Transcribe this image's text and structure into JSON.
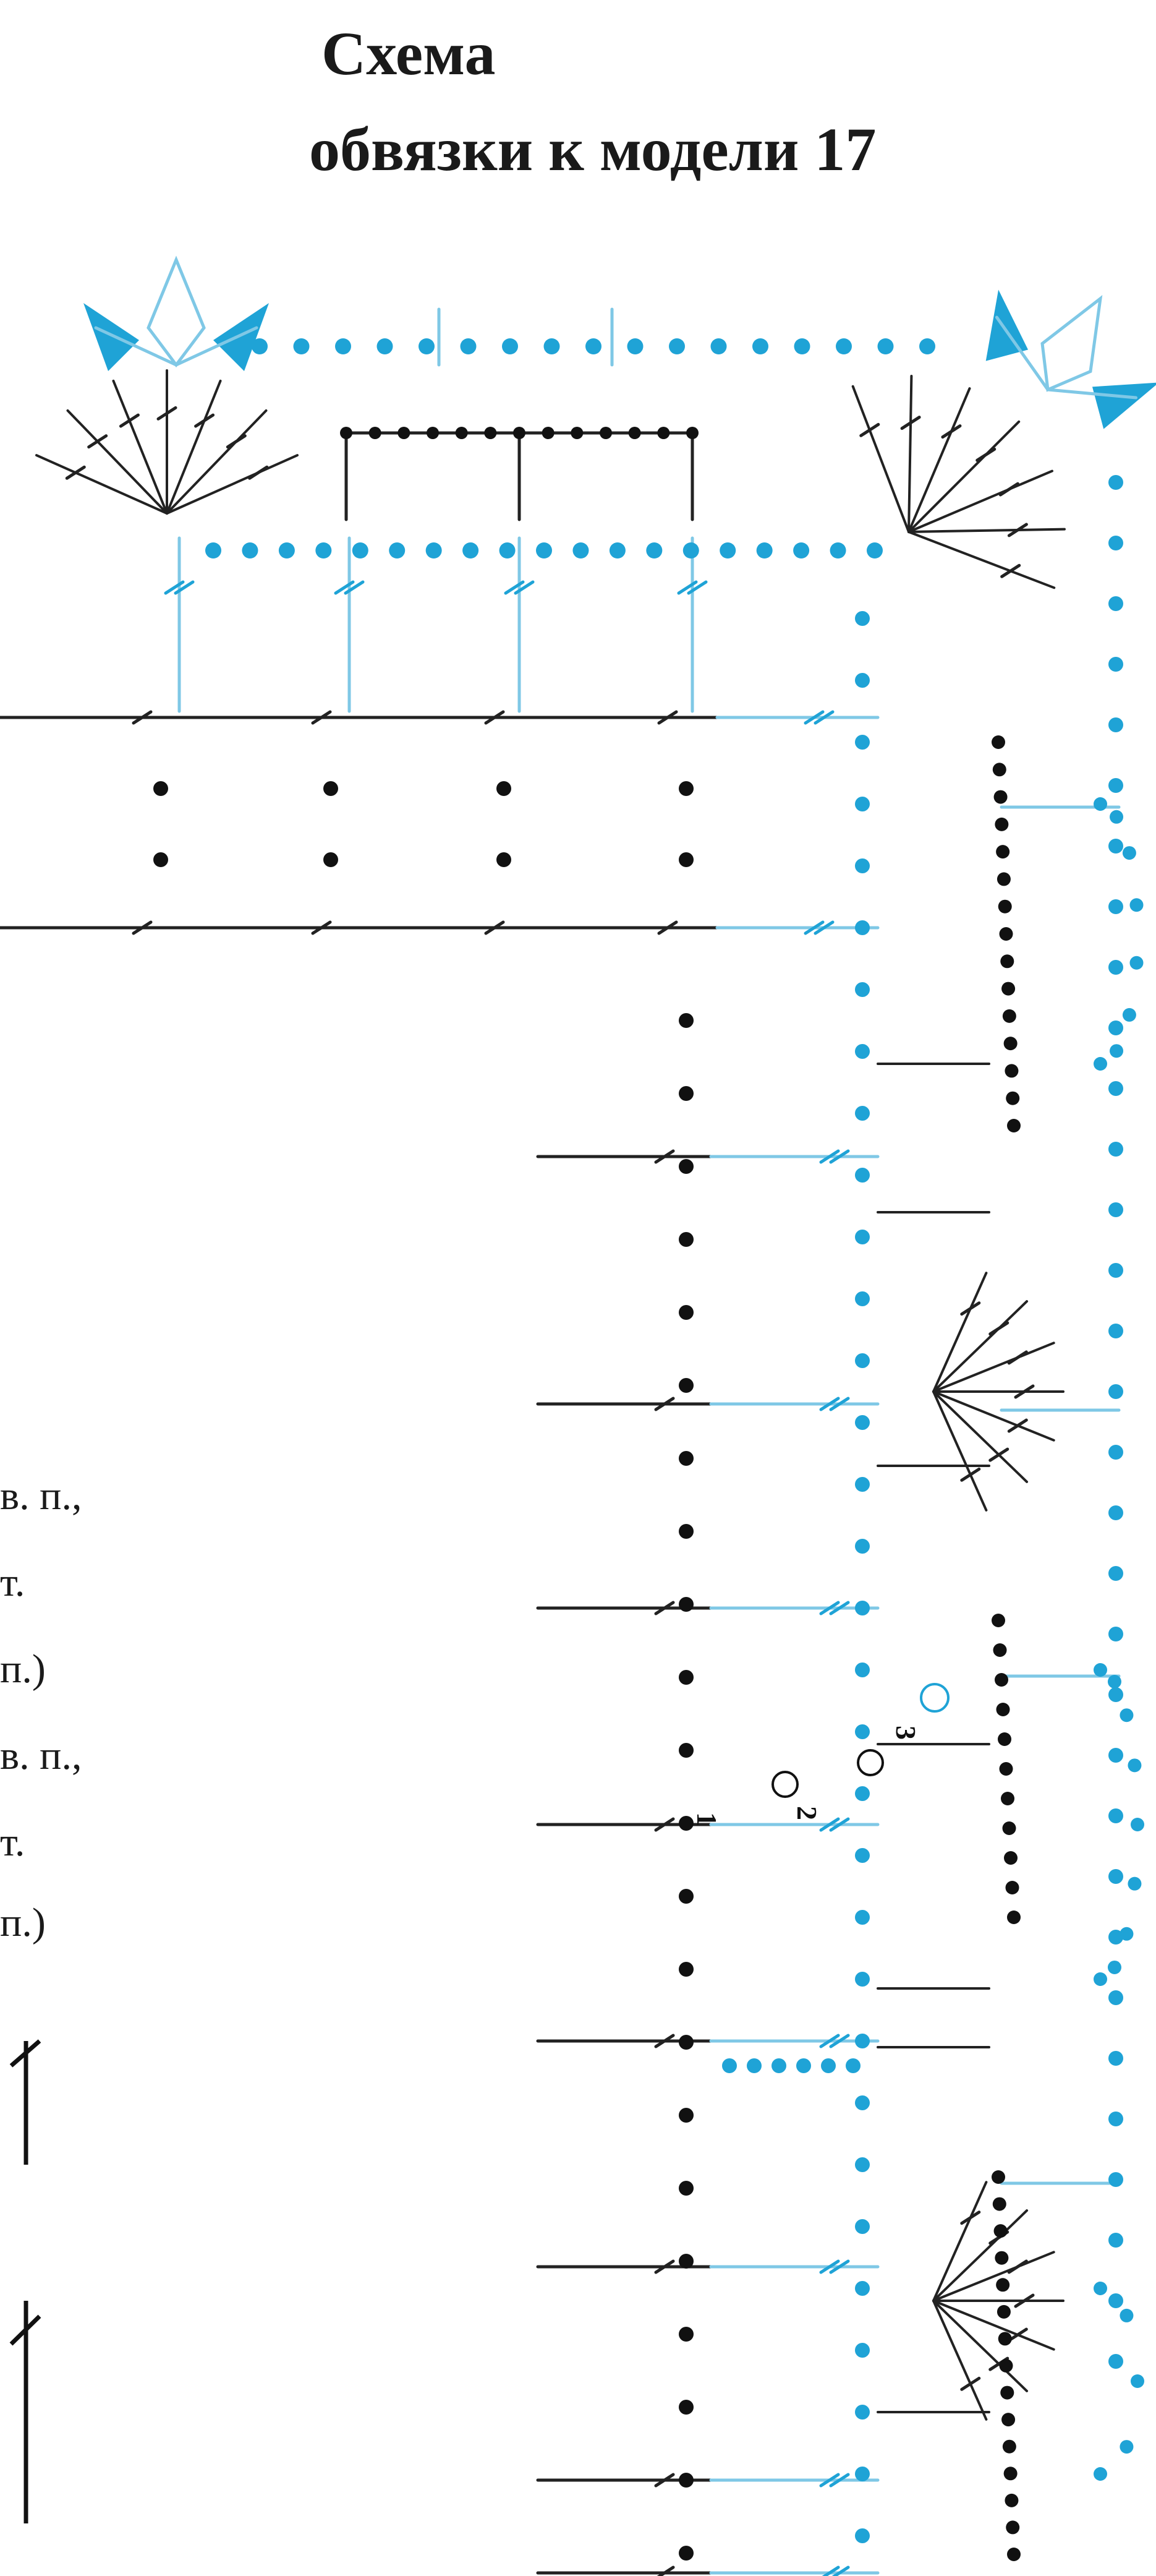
{
  "title": {
    "line1": "Схема",
    "line2": "обвязки к модели 17"
  },
  "legend": [
    "в. п.,",
    "т.",
    "п.)",
    "в. п.,",
    "т.",
    "п.)"
  ],
  "markers": [
    "1",
    "2",
    "3"
  ],
  "colors": {
    "black": "#111111",
    "blue": "#1fa3d6",
    "blue_line": "#7fc8e6"
  }
}
